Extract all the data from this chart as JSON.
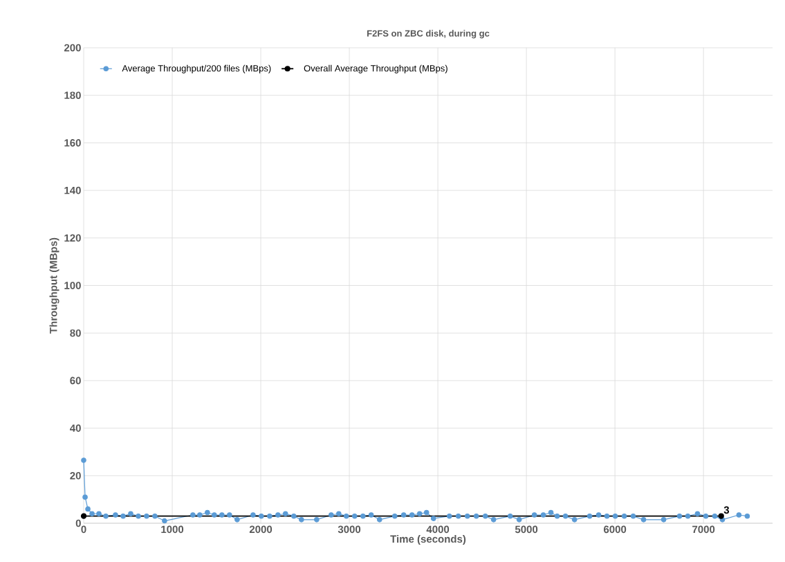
{
  "chart_data": {
    "type": "line",
    "title": "F2FS on ZBC disk, during gc",
    "xlabel": "Time (seconds)",
    "ylabel": "Throughput (MBps)",
    "xlim": [
      0,
      7780
    ],
    "xticks": [
      0,
      1000,
      2000,
      3000,
      4000,
      5000,
      6000,
      7000
    ],
    "ylim": [
      0,
      200
    ],
    "yticks": [
      0,
      20,
      40,
      60,
      80,
      100,
      120,
      140,
      160,
      180,
      200
    ],
    "grid": true,
    "legend": "top",
    "marker": "circle",
    "line_style": "solid",
    "series": [
      {
        "name": "Average Throughput/200 files (MBps)",
        "color": "#5b9bd5",
        "x": [
          0,
          16,
          47,
          94,
          172,
          250,
          359,
          445,
          531,
          617,
          710,
          804,
          913,
          1233,
          1311,
          1397,
          1475,
          1561,
          1647,
          1733,
          1913,
          2006,
          2100,
          2194,
          2279,
          2373,
          2459,
          2631,
          2795,
          2881,
          2966,
          3060,
          3154,
          3247,
          3341,
          3513,
          3614,
          3708,
          3794,
          3872,
          3950,
          4130,
          4231,
          4333,
          4434,
          4536,
          4629,
          4817,
          4918,
          5090,
          5191,
          5277,
          5347,
          5441,
          5543,
          5714,
          5816,
          5909,
          6003,
          6105,
          6206,
          6323,
          6550,
          6729,
          6823,
          6932,
          7026,
          7127,
          7213,
          7400,
          7494
        ],
        "values": [
          26.5,
          11,
          6,
          4,
          4,
          3,
          3.5,
          3,
          4,
          3,
          3,
          3,
          1,
          3.5,
          3.5,
          4.5,
          3.5,
          3.5,
          3.5,
          1.5,
          3.5,
          3,
          3,
          3.5,
          4,
          3,
          1.5,
          1.5,
          3.5,
          4,
          3,
          3,
          3,
          3.5,
          1.5,
          3,
          3.5,
          3.5,
          4,
          4.5,
          2,
          3,
          3,
          3,
          3,
          3,
          1.5,
          3,
          1.5,
          3.5,
          3.5,
          4.5,
          3,
          3,
          1.5,
          3,
          3.5,
          3,
          3,
          3,
          3,
          1.5,
          1.5,
          3,
          3,
          4,
          3,
          3,
          1.5,
          3.5,
          3
        ]
      },
      {
        "name": "Overall Average Throughput (MBps)",
        "color": "#000000",
        "x": [
          0,
          7200
        ],
        "values": [
          3,
          3
        ],
        "value_labels": [
          null,
          "3"
        ]
      }
    ]
  }
}
